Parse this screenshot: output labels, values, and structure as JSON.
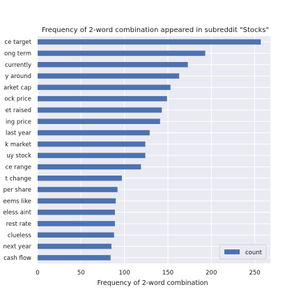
{
  "chart_data": {
    "type": "bar",
    "orientation": "horizontal",
    "title": "Frequency of 2-word combination appeared in subreddit \"Stocks\"",
    "xlabel": "Frequency of 2-word combination",
    "ylabel": "",
    "categories": [
      "price target",
      "long term",
      "currently",
      "literally around",
      "market cap",
      "stock price",
      "target raised",
      "closing price",
      "last year",
      "stock market",
      "buy stock",
      "price range",
      "percent change",
      "per share",
      "seems like",
      "clueless aint",
      "interest rate",
      "clueless",
      "next year",
      "cash flow"
    ],
    "category_visible_text": [
      "ce target",
      "ong term",
      "currently",
      "y around",
      "arket cap",
      "ock price",
      "et raised",
      "ing price",
      "last year",
      "k market",
      "uy stock",
      "ce range",
      "t change",
      "per share",
      "eems like",
      "eless aint",
      "rest rate",
      "clueless",
      "next year",
      "cash flow"
    ],
    "series": [
      {
        "name": "count",
        "color": "#4c72b0",
        "values": [
          257,
          193,
          173,
          163,
          153,
          149,
          143,
          141,
          129,
          124,
          124,
          119,
          97,
          92,
          90,
          89,
          89,
          88,
          85,
          84
        ]
      }
    ],
    "xlim": [
      0,
      268
    ],
    "xticks": [
      0,
      50,
      100,
      150,
      200,
      250
    ],
    "grid": true,
    "legend_position": "lower-right",
    "style": {
      "plot_background": "#eaeaf2",
      "grid_color": "#ffffff"
    }
  }
}
